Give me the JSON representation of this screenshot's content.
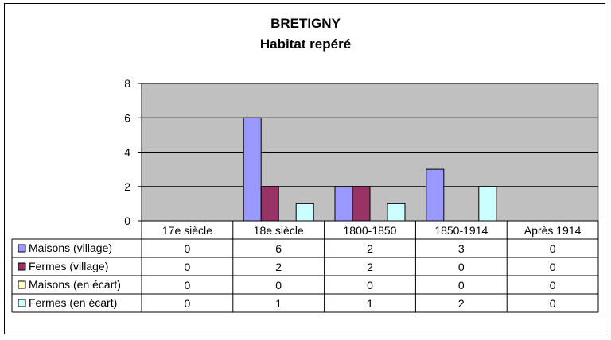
{
  "chart_data": {
    "type": "bar",
    "title": "BRETIGNY",
    "subtitle": "Habitat repéré",
    "categories": [
      "17e siècle",
      "18e siècle",
      "1800-1850",
      "1850-1914",
      "Après 1914"
    ],
    "ylim": [
      0,
      8
    ],
    "yticks": [
      0,
      2,
      4,
      6,
      8
    ],
    "grid": true,
    "legend": "data-table",
    "plot_background": "#c0c0c0",
    "series": [
      {
        "name": "Maisons (village)",
        "color": "#9999ff",
        "values": [
          0,
          6,
          2,
          3,
          0
        ]
      },
      {
        "name": "Fermes (village)",
        "color": "#993366",
        "values": [
          0,
          2,
          2,
          0,
          0
        ]
      },
      {
        "name": "Maisons (en écart)",
        "color": "#ffffcc",
        "values": [
          0,
          0,
          0,
          0,
          0
        ]
      },
      {
        "name": "Fermes (en écart)",
        "color": "#ccffff",
        "values": [
          0,
          1,
          1,
          2,
          0
        ]
      }
    ]
  }
}
